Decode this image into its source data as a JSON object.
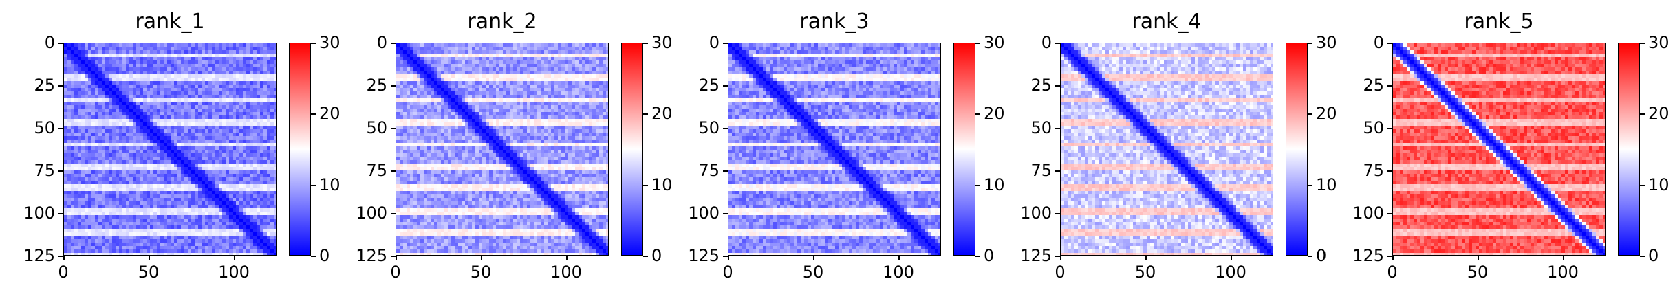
{
  "chart_data": [
    {
      "type": "heatmap",
      "title": "rank_1",
      "xlim": [
        0,
        125
      ],
      "ylim": [
        0,
        125
      ],
      "xticks": [
        0,
        50,
        100
      ],
      "yticks": [
        0,
        25,
        50,
        75,
        100,
        125
      ],
      "colorbar": {
        "min": 0,
        "max": 30,
        "ticks": [
          0,
          10,
          20,
          30
        ],
        "colors": [
          "#0000ff",
          "#ffffff",
          "#ff0000"
        ]
      },
      "base_level": 7,
      "diagonal_level": 0,
      "period": 13,
      "stripe_level": 18
    },
    {
      "type": "heatmap",
      "title": "rank_2",
      "xlim": [
        0,
        125
      ],
      "ylim": [
        0,
        125
      ],
      "xticks": [
        0,
        50,
        100
      ],
      "yticks": [
        0,
        25,
        50,
        75,
        100,
        125
      ],
      "colorbar": {
        "min": 0,
        "max": 30,
        "ticks": [
          0,
          10,
          20,
          30
        ],
        "colors": [
          "#0000ff",
          "#ffffff",
          "#ff0000"
        ]
      },
      "base_level": 9,
      "diagonal_level": 0,
      "period": 13,
      "stripe_level": 20
    },
    {
      "type": "heatmap",
      "title": "rank_3",
      "xlim": [
        0,
        125
      ],
      "ylim": [
        0,
        125
      ],
      "xticks": [
        0,
        50,
        100
      ],
      "yticks": [
        0,
        25,
        50,
        75,
        100,
        125
      ],
      "colorbar": {
        "min": 0,
        "max": 30,
        "ticks": [
          0,
          10,
          20,
          30
        ],
        "colors": [
          "#0000ff",
          "#ffffff",
          "#ff0000"
        ]
      },
      "base_level": 8,
      "diagonal_level": 0,
      "period": 13,
      "stripe_level": 20
    },
    {
      "type": "heatmap",
      "title": "rank_4",
      "xlim": [
        0,
        125
      ],
      "ylim": [
        0,
        125
      ],
      "xticks": [
        0,
        50,
        100
      ],
      "yticks": [
        0,
        25,
        50,
        75,
        100,
        125
      ],
      "colorbar": {
        "min": 0,
        "max": 30,
        "ticks": [
          0,
          10,
          20,
          30
        ],
        "colors": [
          "#0000ff",
          "#ffffff",
          "#ff0000"
        ]
      },
      "base_level": 12,
      "diagonal_level": 0,
      "period": 13,
      "stripe_level": 22
    },
    {
      "type": "heatmap",
      "title": "rank_5",
      "xlim": [
        0,
        125
      ],
      "ylim": [
        0,
        125
      ],
      "xticks": [
        0,
        50,
        100
      ],
      "yticks": [
        0,
        25,
        50,
        75,
        100,
        125
      ],
      "colorbar": {
        "min": 0,
        "max": 30,
        "ticks": [
          0,
          10,
          20,
          30
        ],
        "colors": [
          "#0000ff",
          "#ffffff",
          "#ff0000"
        ]
      },
      "base_level": 25,
      "diagonal_level": 0,
      "period": 13,
      "stripe_level": 14
    }
  ]
}
